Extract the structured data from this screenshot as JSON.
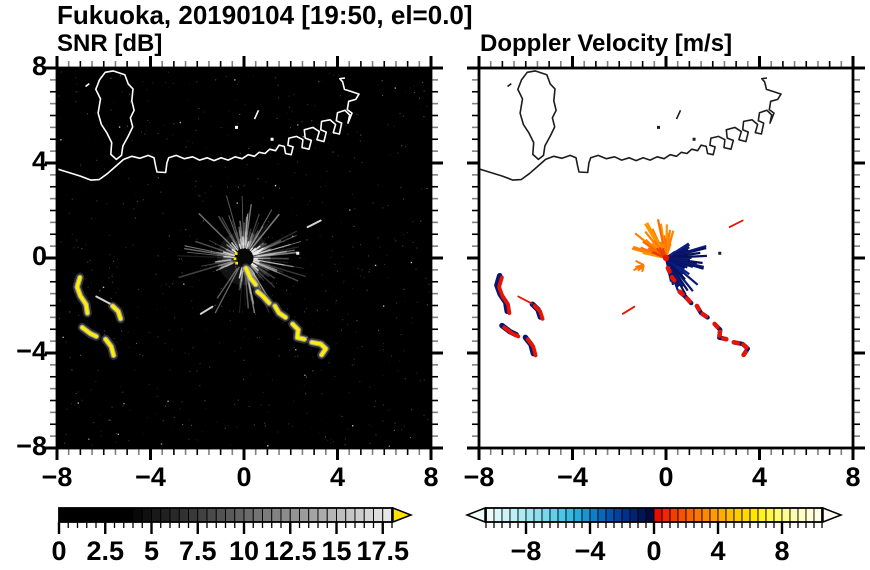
{
  "header": {
    "title": "Fukuoka, 20190104 [19:50, el=0.0]"
  },
  "panels": {
    "snr": {
      "title": "SNR [dB]",
      "bg": "#000000",
      "coast_color": "#ffffff"
    },
    "vel": {
      "title": "Doppler Velocity [m/s]",
      "bg": "#ffffff",
      "coast_color": "#1c1c1c"
    }
  },
  "axes": {
    "xlim": [
      -8,
      8
    ],
    "ylim": [
      -8,
      8
    ],
    "major_ticks": [
      -8,
      -4,
      0,
      4,
      8
    ],
    "minor_step": 0.5,
    "x_ticks": [
      {
        "v": -8,
        "label": "−8"
      },
      {
        "v": -4,
        "label": "−4"
      },
      {
        "v": 0,
        "label": "0"
      },
      {
        "v": 4,
        "label": "4"
      },
      {
        "v": 8,
        "label": "8"
      }
    ],
    "y_ticks": [
      {
        "v": 8,
        "label": "8"
      },
      {
        "v": 4,
        "label": "4"
      },
      {
        "v": 0,
        "label": "0"
      },
      {
        "v": -4,
        "label": "−4"
      },
      {
        "v": -8,
        "label": "−8"
      }
    ]
  },
  "colorbars": {
    "snr": {
      "range": [
        0,
        18
      ],
      "cell_step": 0.5,
      "tick_values": [
        0,
        2.5,
        5,
        7.5,
        10,
        12.5,
        15,
        17.5
      ],
      "tick_labels": [
        "0",
        "2.5",
        "5",
        "7.5",
        "10",
        "12.5",
        "15",
        "17.5"
      ],
      "style": "grayscale",
      "black_until": 3.5,
      "max_gray": 238,
      "over_arrow_color": "#ffe400"
    },
    "vel": {
      "range": [
        -10.5,
        10.5
      ],
      "cell_step": 0.5,
      "tick_values": [
        -8,
        -4,
        0,
        4,
        8
      ],
      "tick_labels": [
        "−8",
        "−4",
        "0",
        "4",
        "8"
      ],
      "neg_colors": [
        "#e9fbfb",
        "#dbf7f9",
        "#ccf3f7",
        "#bdeff5",
        "#adebf3",
        "#9ce5f1",
        "#8adfee",
        "#76d8ec",
        "#62d0e9",
        "#4cc6e5",
        "#38bae1",
        "#26aadb",
        "#1895d3",
        "#0f7ec8",
        "#0968bc",
        "#0453ae",
        "#02419f",
        "#01318d",
        "#012374",
        "#011656",
        "#010c3e"
      ],
      "pos_colors": [
        "#e90d00",
        "#ef2800",
        "#f43e00",
        "#f75200",
        "#fa6500",
        "#fc7700",
        "#fe8900",
        "#ff9a00",
        "#ffab00",
        "#ffbc00",
        "#ffcc00",
        "#ffda00",
        "#ffe600",
        "#fff020",
        "#fff648",
        "#fffa6e",
        "#fffc90",
        "#fffdac",
        "#fffec4",
        "#fffed6",
        "#fffee6"
      ],
      "under_arrow_color": "#eefbfb",
      "over_arrow_color": "#fffef2"
    }
  },
  "chart_data": {
    "type": "heatmap",
    "title": "Fukuoka, 20190104 [19:50, el=0.0]",
    "subtitle_left": "SNR [dB]",
    "subtitle_right": "Doppler Velocity [m/s]",
    "description": "Dual-panel radar PPI over Hakata Bay, Fukuoka. Left panel: signal-to-noise ratio (dB, grayscale 0-18 with yellow overflow). Right panel: Doppler velocity (m/s, cyan-blue negative / red-yellow positive). Axes are km east/north of the radar at the origin.",
    "xlim": [
      -8,
      8
    ],
    "ylim": [
      -8,
      8
    ],
    "radar_site": {
      "x": 0,
      "y": 0
    },
    "snr_echo_color": "#ffee00",
    "snr_halo_colors": [
      "#5a5a5a",
      "#b5b5b5"
    ],
    "snr_clutter_fan": {
      "radius_km": 2.3,
      "spoke_color": "#d4d4d4",
      "blocked_sectors_deg": [
        [
          215,
          232
        ],
        [
          243,
          258
        ]
      ],
      "center_disc_radius_km": 0.38,
      "center_disc_color": "#070707"
    },
    "vel_center_fans": {
      "outbound_sector_deg": [
        72,
        170
      ],
      "outbound_colors": [
        "#ff6a00",
        "#ff8200",
        "#ff9600",
        "#e84000"
      ],
      "inbound_sector_deg": [
        -78,
        38
      ],
      "inbound_colors": [
        "#0a1878",
        "#0d2288",
        "#081058"
      ],
      "radius_km": 1.5,
      "center_dot_color": "#e81200"
    },
    "echo_blobs": [
      {
        "id": "west-arc-1",
        "pts": [
          [
            -7.02,
            -0.82
          ],
          [
            -7.14,
            -1.22
          ],
          [
            -7.0,
            -1.6
          ],
          [
            -6.76,
            -1.95
          ],
          [
            -6.7,
            -2.32
          ]
        ]
      },
      {
        "id": "west-arc-2",
        "pts": [
          [
            -5.62,
            -2.02
          ],
          [
            -5.38,
            -2.25
          ],
          [
            -5.28,
            -2.56
          ]
        ]
      },
      {
        "id": "west-arc-3",
        "pts": [
          [
            -6.92,
            -2.92
          ],
          [
            -6.58,
            -3.18
          ],
          [
            -6.32,
            -3.3
          ]
        ]
      },
      {
        "id": "west-arc-4",
        "pts": [
          [
            -5.92,
            -3.42
          ],
          [
            -5.68,
            -3.72
          ],
          [
            -5.58,
            -4.1
          ]
        ]
      }
    ],
    "echo_chain_segments": [
      [
        [
          0.08,
          -0.42
        ],
        [
          0.28,
          -0.85
        ],
        [
          0.5,
          -1.12
        ]
      ],
      [
        [
          0.58,
          -1.42
        ],
        [
          0.82,
          -1.62
        ],
        [
          1.08,
          -1.9
        ]
      ],
      [
        [
          1.32,
          -2.02
        ],
        [
          1.5,
          -2.32
        ],
        [
          1.78,
          -2.5
        ]
      ],
      [
        [
          2.08,
          -2.78
        ],
        [
          2.32,
          -3.02
        ],
        [
          2.28,
          -3.35
        ],
        [
          2.58,
          -3.42
        ]
      ],
      [
        [
          2.9,
          -3.55
        ],
        [
          3.28,
          -3.62
        ],
        [
          3.5,
          -3.82
        ],
        [
          3.32,
          -4.08
        ]
      ]
    ],
    "thin_streaks": [
      {
        "id": "west-thin",
        "pts": [
          [
            -6.32,
            -1.62
          ],
          [
            -5.74,
            -1.92
          ]
        ]
      },
      {
        "id": "sw-dash",
        "pts": [
          [
            -1.85,
            -2.35
          ],
          [
            -1.35,
            -2.05
          ]
        ]
      },
      {
        "id": "ne-dash",
        "pts": [
          [
            2.72,
            1.3
          ],
          [
            3.28,
            1.58
          ]
        ]
      }
    ],
    "vel_blob_fill": "#e81400",
    "vel_blob_edge": "#0a1670",
    "coastline": [
      [
        -8,
        3.75
      ],
      [
        -7.5,
        3.6
      ],
      [
        -7.0,
        3.45
      ],
      [
        -6.55,
        3.28
      ],
      [
        -6.2,
        3.3
      ],
      [
        -5.85,
        3.55
      ],
      [
        -5.5,
        3.85
      ],
      [
        -5.15,
        4.15
      ],
      [
        -4.8,
        4.28
      ],
      [
        -4.45,
        4.2
      ],
      [
        -4.1,
        4.32
      ],
      [
        -3.85,
        4.22
      ],
      [
        -3.78,
        3.88
      ],
      [
        -3.72,
        3.62
      ],
      [
        -3.35,
        3.6
      ],
      [
        -3.3,
        4.0
      ],
      [
        -3.22,
        4.22
      ],
      [
        -2.9,
        4.32
      ],
      [
        -2.55,
        4.18
      ],
      [
        -2.2,
        4.26
      ],
      [
        -1.9,
        4.12
      ],
      [
        -1.58,
        4.22
      ],
      [
        -1.28,
        4.1
      ],
      [
        -0.98,
        4.22
      ],
      [
        -0.68,
        4.12
      ],
      [
        -0.38,
        4.26
      ],
      [
        -0.08,
        4.18
      ],
      [
        0.18,
        4.35
      ],
      [
        0.45,
        4.28
      ],
      [
        0.65,
        4.45
      ],
      [
        0.9,
        4.4
      ],
      [
        1.1,
        4.58
      ],
      [
        1.35,
        4.52
      ],
      [
        1.5,
        4.75
      ],
      [
        1.72,
        4.7
      ],
      [
        1.78,
        4.4
      ],
      [
        2.02,
        4.35
      ],
      [
        2.1,
        4.68
      ],
      [
        1.88,
        4.75
      ],
      [
        1.92,
        5.05
      ],
      [
        2.25,
        5.12
      ],
      [
        2.52,
        4.98
      ],
      [
        2.48,
        4.65
      ],
      [
        2.78,
        4.58
      ],
      [
        2.88,
        4.95
      ],
      [
        2.62,
        5.05
      ],
      [
        2.58,
        5.4
      ],
      [
        2.95,
        5.5
      ],
      [
        3.22,
        5.32
      ],
      [
        3.12,
        4.98
      ],
      [
        3.42,
        4.9
      ],
      [
        3.52,
        5.3
      ],
      [
        3.28,
        5.4
      ],
      [
        3.32,
        5.75
      ],
      [
        3.68,
        5.82
      ],
      [
        3.92,
        5.62
      ],
      [
        3.82,
        5.28
      ],
      [
        4.08,
        5.22
      ],
      [
        4.18,
        5.68
      ],
      [
        3.95,
        5.78
      ],
      [
        4.0,
        6.12
      ],
      [
        4.32,
        6.22
      ],
      [
        4.52,
        6.02
      ],
      [
        4.45,
        5.68
      ],
      [
        4.62,
        6.1
      ],
      [
        4.42,
        6.25
      ],
      [
        4.48,
        6.6
      ],
      [
        4.78,
        6.68
      ],
      [
        4.92,
        6.9
      ],
      [
        4.62,
        7.0
      ],
      [
        4.3,
        7.1
      ],
      [
        4.22,
        7.42
      ],
      [
        4.1,
        7.55
      ],
      [
        4.32,
        7.58
      ]
    ],
    "island": [
      [
        -5.6,
        7.88
      ],
      [
        -5.1,
        7.72
      ],
      [
        -4.95,
        7.32
      ],
      [
        -4.75,
        7.12
      ],
      [
        -4.8,
        6.62
      ],
      [
        -4.7,
        6.22
      ],
      [
        -4.86,
        5.9
      ],
      [
        -4.76,
        5.52
      ],
      [
        -4.96,
        5.12
      ],
      [
        -5.18,
        4.72
      ],
      [
        -5.24,
        4.32
      ],
      [
        -5.46,
        4.15
      ],
      [
        -5.7,
        4.36
      ],
      [
        -5.66,
        4.86
      ],
      [
        -5.86,
        5.26
      ],
      [
        -6.1,
        5.62
      ],
      [
        -6.24,
        6.1
      ],
      [
        -6.14,
        6.7
      ],
      [
        -6.34,
        7.1
      ],
      [
        -6.18,
        7.5
      ],
      [
        -5.94,
        7.82
      ]
    ],
    "coast_marks": [
      {
        "type": "seg",
        "pts": [
          [
            -6.78,
            7.22
          ],
          [
            -6.62,
            7.34
          ]
        ]
      },
      {
        "type": "dot",
        "x": -0.32,
        "y": 5.5
      },
      {
        "type": "seg",
        "pts": [
          [
            0.45,
            5.85
          ],
          [
            0.62,
            6.22
          ]
        ]
      },
      {
        "type": "dot",
        "x": 1.2,
        "y": 5.0
      },
      {
        "type": "dot",
        "x": 2.3,
        "y": 0.2
      }
    ]
  }
}
